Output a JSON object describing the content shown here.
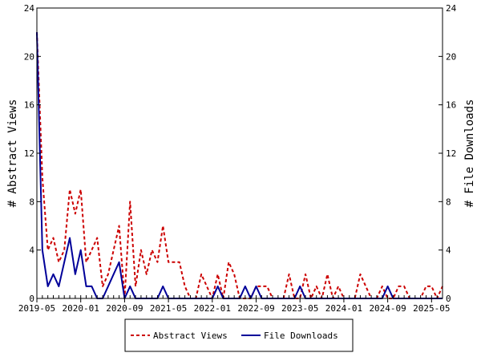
{
  "chart_data": {
    "type": "line",
    "title": "",
    "xlabel": "",
    "ylabel": "# Abstract Views",
    "ylabel_right": "# File Downloads",
    "ylim": [
      0,
      24
    ],
    "y_ticks": [
      0,
      4,
      8,
      12,
      16,
      20,
      24
    ],
    "x_ticks": [
      "2019-05",
      "2020-01",
      "2020-09",
      "2021-05",
      "2022-01",
      "2022-09",
      "2023-05",
      "2024-01",
      "2024-09",
      "2025-05"
    ],
    "x": [
      "2019-05",
      "2019-06",
      "2019-07",
      "2019-08",
      "2019-09",
      "2019-10",
      "2019-11",
      "2019-12",
      "2020-01",
      "2020-02",
      "2020-03",
      "2020-04",
      "2020-05",
      "2020-06",
      "2020-07",
      "2020-08",
      "2020-09",
      "2020-10",
      "2020-11",
      "2020-12",
      "2021-01",
      "2021-02",
      "2021-03",
      "2021-04",
      "2021-05",
      "2021-06",
      "2021-07",
      "2021-08",
      "2021-09",
      "2021-10",
      "2021-11",
      "2021-12",
      "2022-01",
      "2022-02",
      "2022-03",
      "2022-04",
      "2022-05",
      "2022-06",
      "2022-07",
      "2022-08",
      "2022-09",
      "2022-10",
      "2022-11",
      "2022-12",
      "2023-01",
      "2023-02",
      "2023-03",
      "2023-04",
      "2023-05",
      "2023-06",
      "2023-07",
      "2023-08",
      "2023-09",
      "2023-10",
      "2023-11",
      "2023-12",
      "2024-01",
      "2024-02",
      "2024-03",
      "2024-04",
      "2024-05",
      "2024-06",
      "2024-07",
      "2024-08",
      "2024-09",
      "2024-10",
      "2024-11",
      "2024-12",
      "2025-01",
      "2025-02",
      "2025-03",
      "2025-04",
      "2025-05",
      "2025-06",
      "2025-07"
    ],
    "series": [
      {
        "name": "Abstract Views",
        "color": "#cc0000",
        "style": "dashed",
        "values": [
          22,
          10,
          4,
          5,
          3,
          4,
          9,
          7,
          9,
          3,
          4,
          5,
          1,
          2,
          4,
          6,
          0,
          8,
          1,
          4,
          2,
          4,
          3,
          6,
          3,
          3,
          3,
          1,
          0,
          0,
          2,
          1,
          0,
          2,
          0,
          3,
          2,
          0,
          0,
          0,
          1,
          1,
          1,
          0,
          0,
          0,
          2,
          0,
          0,
          2,
          0,
          1,
          0,
          2,
          0,
          1,
          0,
          0,
          0,
          2,
          1,
          0,
          0,
          1,
          0,
          0,
          1,
          1,
          0,
          0,
          0,
          1,
          1,
          0,
          1
        ]
      },
      {
        "name": "File Downloads",
        "color": "#000099",
        "style": "solid",
        "values": [
          22,
          4,
          1,
          2,
          1,
          3,
          5,
          2,
          4,
          1,
          1,
          0,
          0,
          1,
          2,
          3,
          0,
          1,
          0,
          0,
          0,
          0,
          0,
          1,
          0,
          0,
          0,
          0,
          0,
          0,
          0,
          0,
          0,
          1,
          0,
          0,
          0,
          0,
          1,
          0,
          1,
          0,
          0,
          0,
          0,
          0,
          0,
          0,
          1,
          0,
          0,
          0,
          0,
          0,
          0,
          0,
          0,
          0,
          0,
          0,
          0,
          0,
          0,
          0,
          1,
          0,
          0,
          0,
          0,
          0,
          0,
          0,
          0,
          0,
          0
        ]
      }
    ],
    "grid": false,
    "legend": "bottom-center"
  }
}
